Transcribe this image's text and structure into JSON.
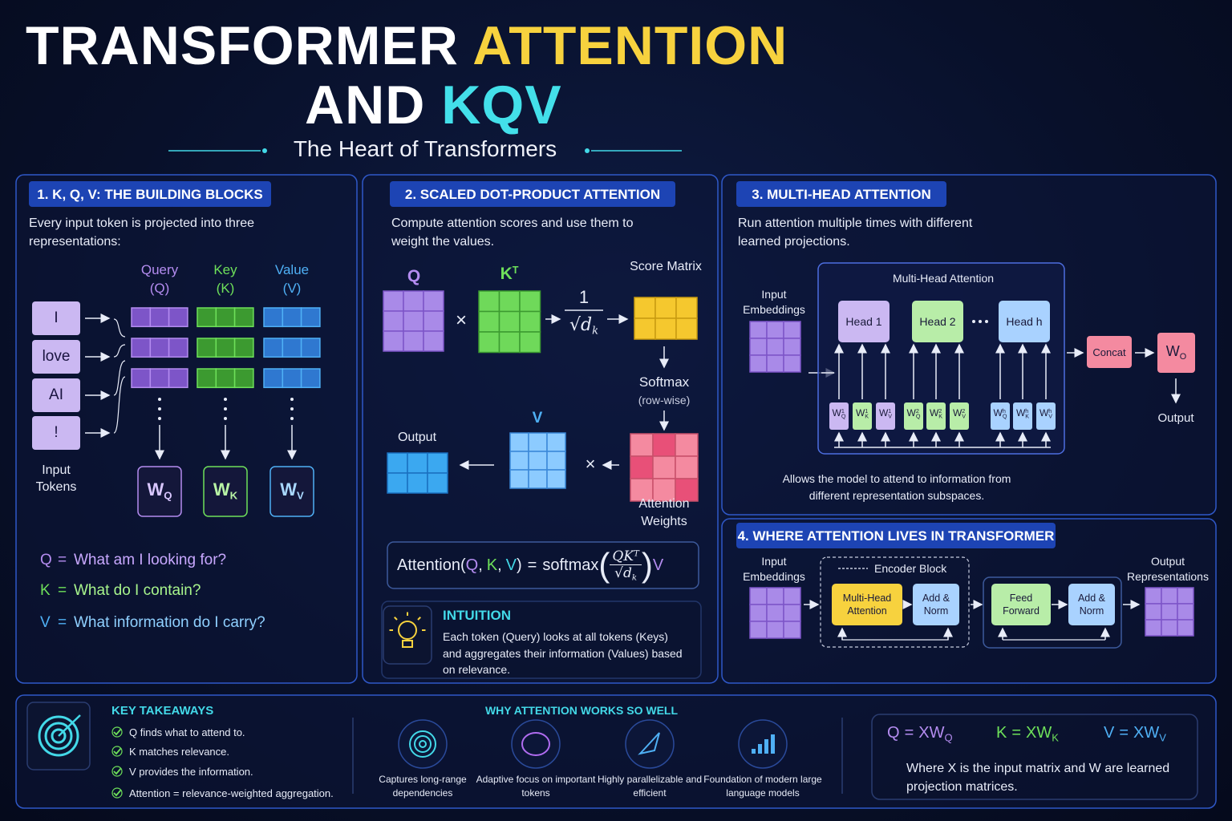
{
  "header": {
    "title_part1": "TRANSFORMER",
    "title_part2": "ATTENTION",
    "title_part3": "AND",
    "title_part4": "KQV",
    "subtitle": "The Heart of Transformers"
  },
  "panel1": {
    "heading": "1. K, Q, V: THE BUILDING BLOCKS",
    "description": "Every input token is projected into three representations:",
    "tokens": [
      "I",
      "love",
      "AI",
      "!"
    ],
    "tokens_label": "Input Tokens",
    "columns": [
      {
        "name": "Query",
        "symbol": "(Q)"
      },
      {
        "name": "Key",
        "symbol": "(K)"
      },
      {
        "name": "Value",
        "symbol": "(V)"
      }
    ],
    "weights": [
      {
        "base": "W",
        "sub": "Q"
      },
      {
        "base": "W",
        "sub": "K"
      },
      {
        "base": "W",
        "sub": "V"
      }
    ],
    "definitions": [
      {
        "letter": "Q",
        "equals": "=",
        "text": "What am I looking for?"
      },
      {
        "letter": "K",
        "equals": "=",
        "text": "What do I contain?"
      },
      {
        "letter": "V",
        "equals": "=",
        "text": "What information do I carry?"
      }
    ]
  },
  "panel2": {
    "heading": "2. SCALED DOT-PRODUCT ATTENTION",
    "description": "Compute attention scores and use them to weight the values.",
    "q": "Q",
    "kt": {
      "base": "K",
      "sup": "T"
    },
    "times": "×",
    "scale_numerator": "1",
    "scale_denominator": {
      "root": "√",
      "base": "d",
      "sub": "k"
    },
    "score": "Score Matrix",
    "softmax": "Softmax",
    "rowwise": "(row-wise)",
    "v": "V",
    "output": "Output",
    "weights": "Attention Weights",
    "formula": {
      "name": "Attention",
      "open": "(",
      "q": "Q",
      "comma": ",",
      "k": "K",
      "v": "V",
      "close": ")",
      "equals": "=",
      "fn": "softmax",
      "numerator": {
        "base": "QK",
        "sup": "T"
      },
      "denominator": {
        "root": "√",
        "base": "d",
        "sub": "k"
      },
      "times_v": "V"
    },
    "intuition": {
      "title": "INTUITION",
      "text": "Each token (Query) looks at all tokens (Keys) and aggregates their information (Values) based on relevance."
    }
  },
  "panel3": {
    "heading": "3. MULTI-HEAD ATTENTION",
    "description": "Run attention multiple times with different learned projections.",
    "input": "Input Embeddings",
    "box_title": "Multi-Head Attention",
    "heads": [
      "Head 1",
      "Head 2",
      "Head h"
    ],
    "projections": [
      {
        "base": "W",
        "sup": "1",
        "sub": "Q"
      },
      {
        "base": "W",
        "sup": "1",
        "sub": "K"
      },
      {
        "base": "W",
        "sup": "1",
        "sub": "V"
      },
      {
        "base": "W",
        "sup": "2",
        "sub": "Q"
      },
      {
        "base": "W",
        "sup": "2",
        "sub": "K"
      },
      {
        "base": "W",
        "sup": "2",
        "sub": "V"
      },
      {
        "base": "W",
        "sup": "h",
        "sub": "Q"
      },
      {
        "base": "W",
        "sup": "h",
        "sub": "K"
      },
      {
        "base": "W",
        "sup": "h",
        "sub": "V"
      }
    ],
    "concat": "Concat",
    "wo": {
      "base": "W",
      "sub": "O"
    },
    "output": "Output",
    "note": "Allows the model to attend to information from different representation subspaces."
  },
  "panel4": {
    "heading": "4. WHERE ATTENTION LIVES IN TRANSFORMER",
    "input": "Input Embeddings",
    "encoder": "Encoder Block",
    "blocks": [
      "Multi-Head Attention",
      "Add & Norm",
      "Feed Forward",
      "Add & Norm"
    ],
    "output": "Output Representations"
  },
  "footer": {
    "takeaways_title": "KEY TAKEAWAYS",
    "takeaways": [
      "Q finds what to attend to.",
      "K matches relevance.",
      "V provides the information.",
      "Attention = relevance-weighted aggregation."
    ],
    "why_title": "WHY ATTENTION WORKS SO WELL",
    "reasons": [
      "Captures long-range dependencies",
      "Adaptive focus on important tokens",
      "Highly parallelizable and efficient",
      "Foundation of modern large language models"
    ],
    "equations": [
      {
        "lhs": "Q",
        "eq": "=",
        "rhs": {
          "base": "XW",
          "sub": "Q"
        }
      },
      {
        "lhs": "K",
        "eq": "=",
        "rhs": {
          "base": "XW",
          "sub": "K"
        }
      },
      {
        "lhs": "V",
        "eq": "=",
        "rhs": {
          "base": "XW",
          "sub": "V"
        }
      }
    ],
    "equations_note": "Where X is the input matrix and W are learned projection matrices."
  }
}
